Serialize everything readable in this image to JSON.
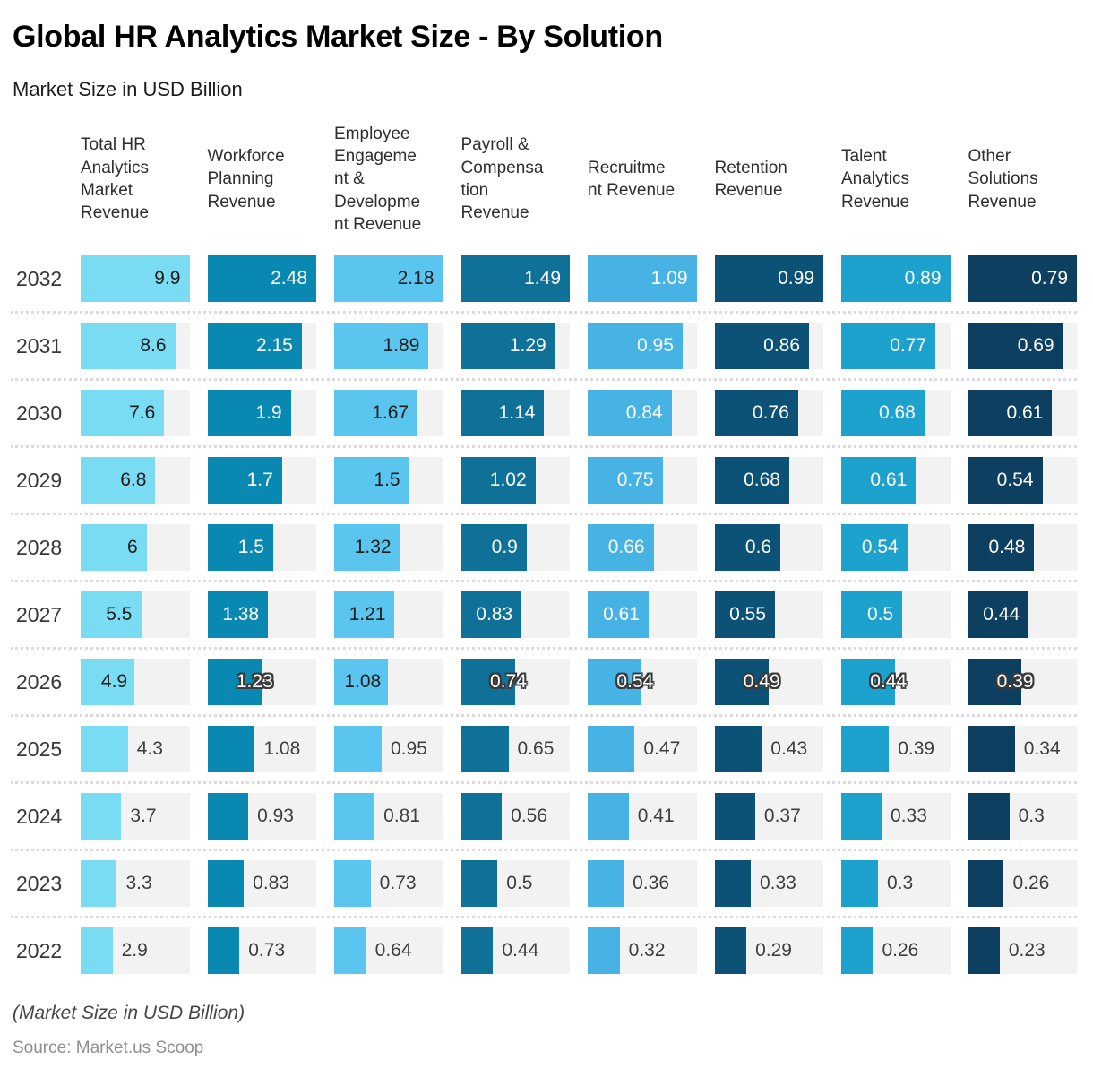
{
  "title": "Global HR Analytics Market Size - By Solution",
  "subtitle": "Market Size in USD Billion",
  "footer": {
    "note": "(Market Size in USD Billion)",
    "source": "Source: Market.us Scoop"
  },
  "style": {
    "track_color": "#F2F2F2",
    "separator_color": "#DBDBDB",
    "halo_outline_color": "#3A3A3A",
    "label_inside_dark": "#FFFFFF",
    "label_inside_light": "#1C1C1C",
    "label_outside": "#3F3F3F"
  },
  "columns": [
    {
      "display": "Total HR\nAnalytics\nMarket\nRevenue",
      "color": "#79DCF3",
      "light": true
    },
    {
      "display": "Workforce\nPlanning\nRevenue",
      "color": "#0989B1",
      "light": false
    },
    {
      "display": "Employee\nEngageme\nnt &\nDevelopme\nnt Revenue",
      "color": "#5AC6F0",
      "light": true
    },
    {
      "display": "Payroll &\nCompensa\ntion\nRevenue",
      "color": "#0F7197",
      "light": false
    },
    {
      "display": "Recruitme\nnt Revenue",
      "color": "#46B3E4",
      "light": false
    },
    {
      "display": "Retention\nRevenue",
      "color": "#0C5277",
      "light": false
    },
    {
      "display": "Talent\nAnalytics\nRevenue",
      "color": "#1DA2CE",
      "light": false
    },
    {
      "display": "Other\nSolutions\nRevenue",
      "color": "#0D4060",
      "light": false
    }
  ],
  "chart_data": {
    "type": "bar",
    "title": "Global HR Analytics Market Size - By Solution",
    "units": "USD Billion",
    "legend": "none",
    "orientation": "horizontal-bars-per-cell",
    "categories": [
      "2032",
      "2031",
      "2030",
      "2029",
      "2028",
      "2027",
      "2026",
      "2025",
      "2024",
      "2023",
      "2022"
    ],
    "series": [
      {
        "name": "Total HR Analytics Market Revenue",
        "color": "#79DCF3",
        "values": [
          9.9,
          8.6,
          7.6,
          6.8,
          6,
          5.5,
          4.9,
          4.3,
          3.7,
          3.3,
          2.9
        ]
      },
      {
        "name": "Workforce Planning Revenue",
        "color": "#0989B1",
        "values": [
          2.48,
          2.15,
          1.9,
          1.7,
          1.5,
          1.38,
          1.23,
          1.08,
          0.93,
          0.83,
          0.73
        ]
      },
      {
        "name": "Employee Engagement & Development Revenue",
        "color": "#5AC6F0",
        "values": [
          2.18,
          1.89,
          1.67,
          1.5,
          1.32,
          1.21,
          1.08,
          0.95,
          0.81,
          0.73,
          0.64
        ]
      },
      {
        "name": "Payroll & Compensation Revenue",
        "color": "#0F7197",
        "values": [
          1.49,
          1.29,
          1.14,
          1.02,
          0.9,
          0.83,
          0.74,
          0.65,
          0.56,
          0.5,
          0.44
        ]
      },
      {
        "name": "Recruitment Revenue",
        "color": "#46B3E4",
        "values": [
          1.09,
          0.95,
          0.84,
          0.75,
          0.66,
          0.61,
          0.54,
          0.47,
          0.41,
          0.36,
          0.32
        ]
      },
      {
        "name": "Retention Revenue",
        "color": "#0C5277",
        "values": [
          0.99,
          0.86,
          0.76,
          0.68,
          0.6,
          0.55,
          0.49,
          0.43,
          0.37,
          0.33,
          0.29
        ]
      },
      {
        "name": "Talent Analytics Revenue",
        "color": "#1DA2CE",
        "values": [
          0.89,
          0.77,
          0.68,
          0.61,
          0.54,
          0.5,
          0.44,
          0.39,
          0.33,
          0.3,
          0.26
        ]
      },
      {
        "name": "Other Solutions Revenue",
        "color": "#0D4060",
        "values": [
          0.79,
          0.69,
          0.61,
          0.54,
          0.48,
          0.44,
          0.39,
          0.34,
          0.3,
          0.26,
          0.23
        ]
      }
    ]
  }
}
